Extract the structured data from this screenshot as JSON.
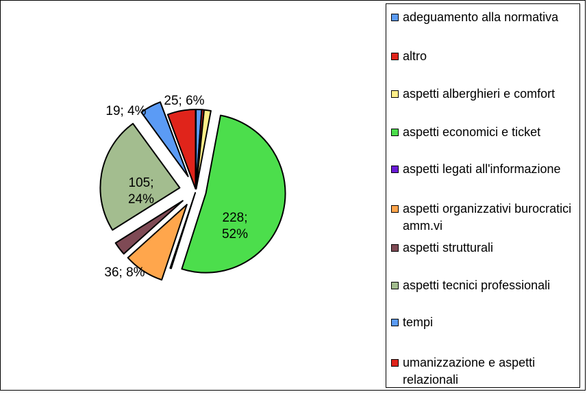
{
  "chart_data": {
    "type": "pie",
    "title": "",
    "legend_position": "right",
    "slices": [
      {
        "label": "adeguamento alla normativa",
        "value": 5,
        "percent": "1%",
        "color": "#5b9bf5",
        "data_label": ""
      },
      {
        "label": "altro",
        "value": 2,
        "percent": "0%",
        "color": "#e0241b",
        "data_label": ""
      },
      {
        "label": "aspetti alberghieri e comfort",
        "value": 6,
        "percent": "1%",
        "color": "#ffee88",
        "data_label": ""
      },
      {
        "label": "aspetti economici e ticket",
        "value": 228,
        "percent": "52%",
        "color": "#4cde4c",
        "data_label": "228; 52%"
      },
      {
        "label": "aspetti legati all'informazione",
        "value": 1,
        "percent": "0%",
        "color": "#6a1bd6",
        "data_label": ""
      },
      {
        "label": "aspetti organizzativi burocratici amm.vi",
        "value": 36,
        "percent": "8%",
        "color": "#ffa64c",
        "data_label": "36; 8%"
      },
      {
        "label": "aspetti strutturali",
        "value": 12,
        "percent": "3%",
        "color": "#7f4a55",
        "data_label": ""
      },
      {
        "label": "aspetti tecnici professionali",
        "value": 105,
        "percent": "24%",
        "color": "#a3bd8f",
        "data_label": "105; 24%"
      },
      {
        "label": "tempi",
        "value": 19,
        "percent": "4%",
        "color": "#5b9bf5",
        "data_label": "19; 4%"
      },
      {
        "label": "umanizzazione e aspetti relazionali",
        "value": 25,
        "percent": "6%",
        "color": "#e0241b",
        "data_label": "25; 6%"
      }
    ]
  }
}
